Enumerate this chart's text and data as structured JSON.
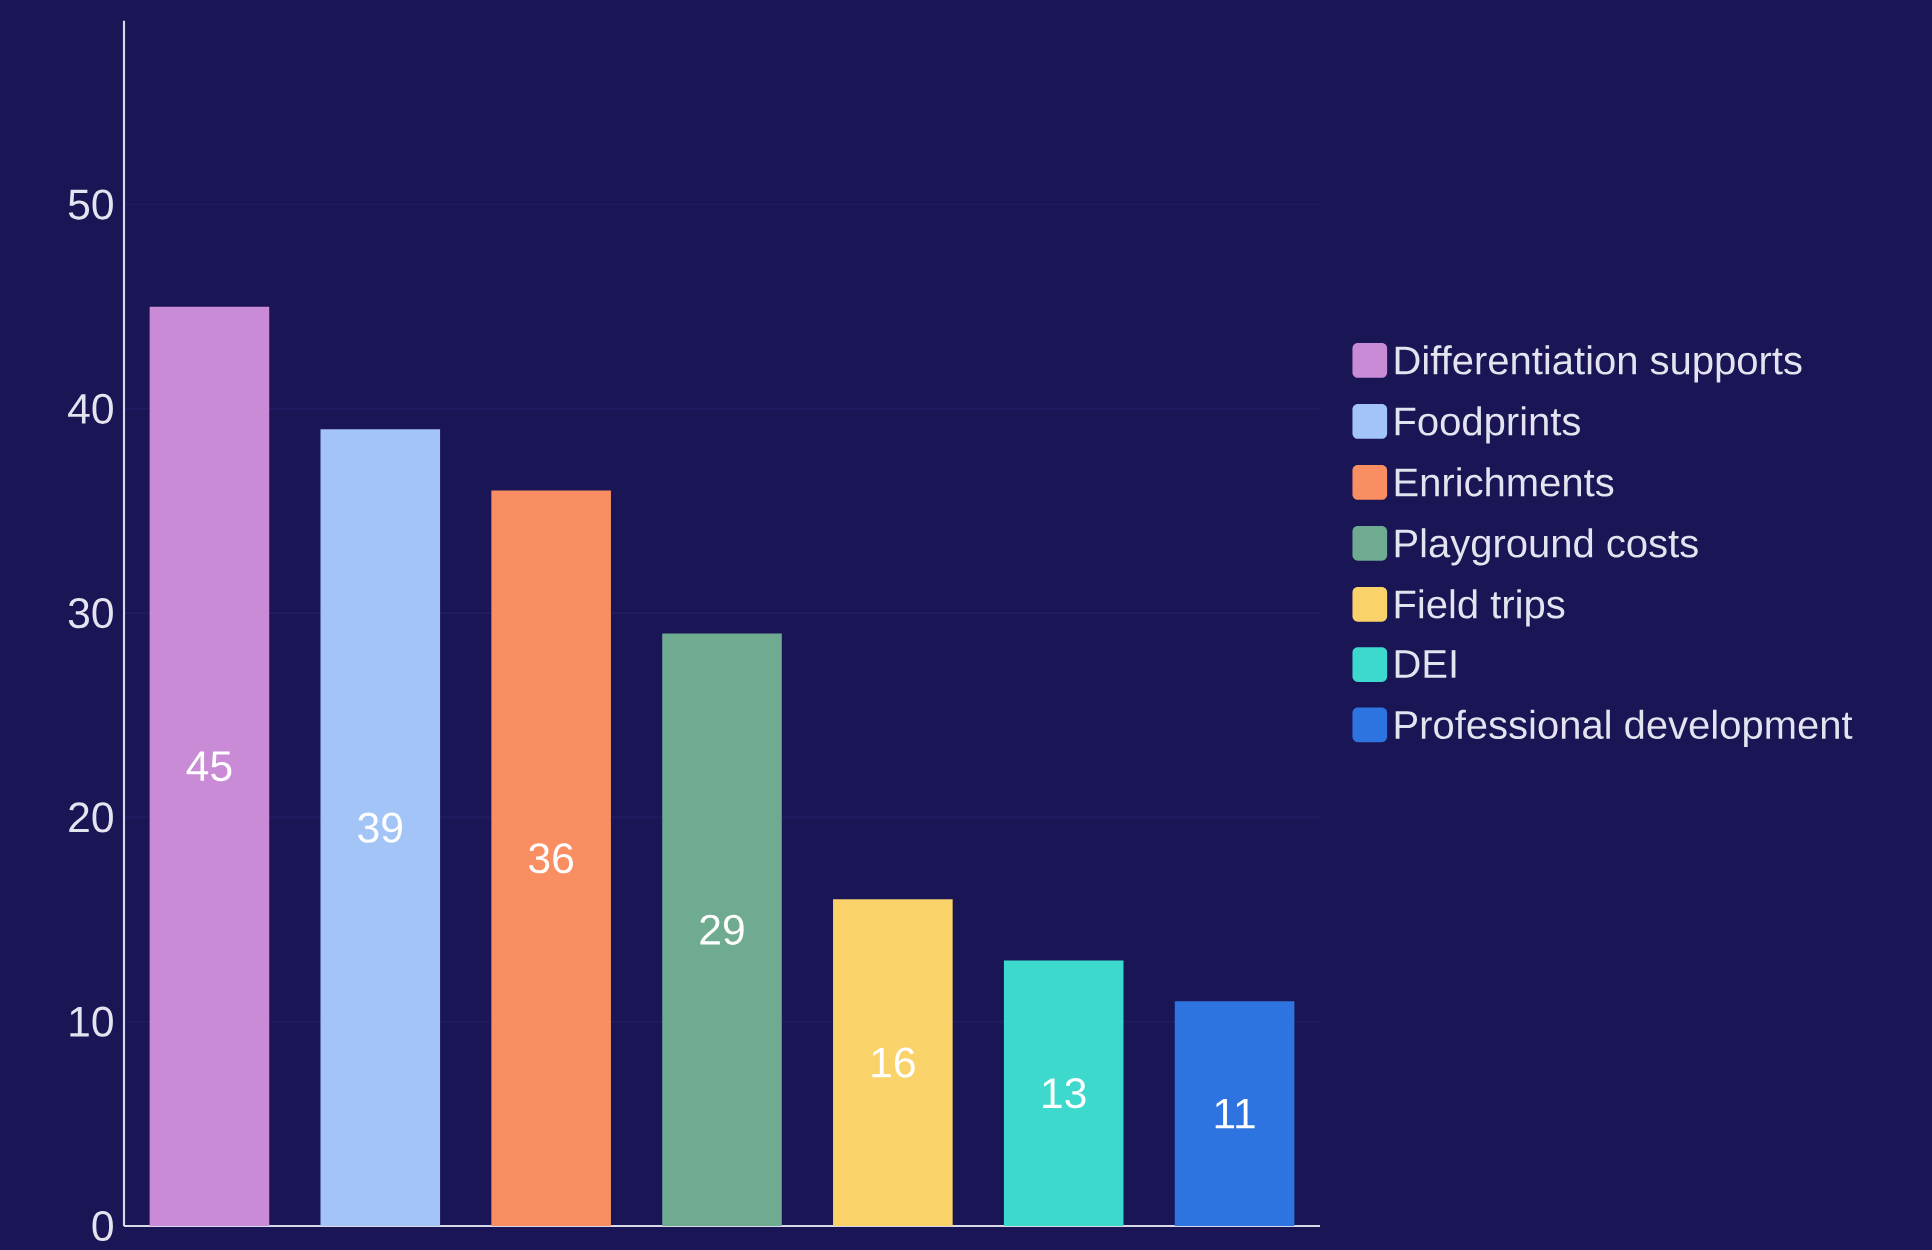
{
  "chart_data": {
    "type": "bar",
    "categories": [
      null,
      null,
      null,
      null,
      null,
      null,
      null
    ],
    "series": [
      {
        "name": "Differentiation supports",
        "color": "#c98bd6",
        "values": [
          45,
          null,
          null,
          null,
          null,
          null,
          null
        ]
      },
      {
        "name": "Foodprints",
        "color": "#a3c4f7",
        "values": [
          null,
          39,
          null,
          null,
          null,
          null,
          null
        ]
      },
      {
        "name": "Enrichments",
        "color": "#f98e63",
        "values": [
          null,
          null,
          36,
          null,
          null,
          null,
          null
        ]
      },
      {
        "name": "Playground costs",
        "color": "#6fab90",
        "values": [
          null,
          null,
          null,
          29,
          null,
          null,
          null
        ]
      },
      {
        "name": "Field trips",
        "color": "#fad26a",
        "values": [
          null,
          null,
          null,
          null,
          16,
          null,
          null
        ]
      },
      {
        "name": "DEI",
        "color": "#3dd9cc",
        "values": [
          null,
          null,
          null,
          null,
          null,
          13,
          null
        ]
      },
      {
        "name": "Professional development",
        "color": "#2e74e0",
        "values": [
          null,
          null,
          null,
          null,
          null,
          null,
          11
        ]
      }
    ],
    "ylim": [
      0,
      59
    ],
    "yticks": [
      0,
      10,
      20,
      30,
      40,
      50
    ],
    "grid": "y",
    "legend": "right",
    "data_labels": true
  }
}
